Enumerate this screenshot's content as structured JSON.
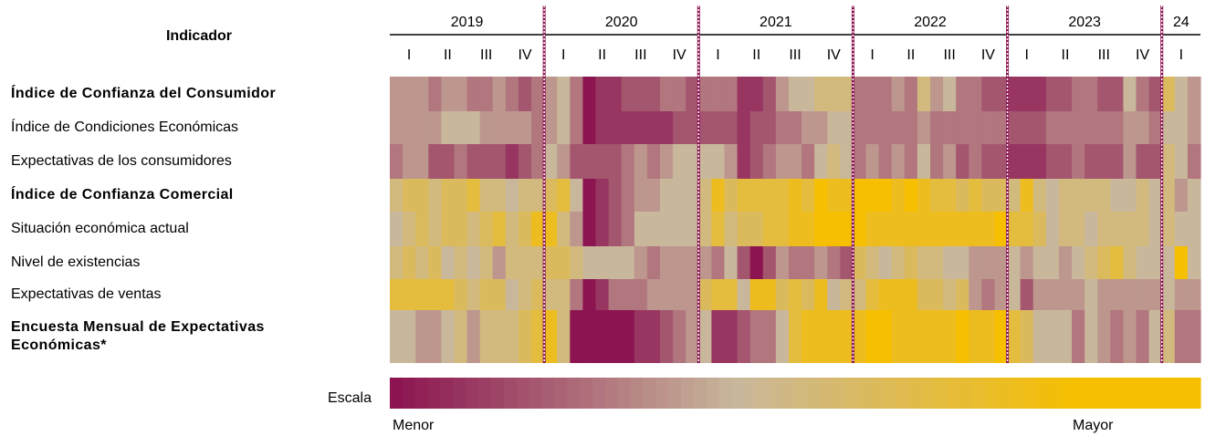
{
  "chart_data": {
    "type": "heatmap",
    "row_header": "Indicador",
    "years": [
      "2019",
      "2020",
      "2021",
      "2022",
      "2023",
      "24"
    ],
    "quarters": [
      "I",
      "II",
      "III",
      "IV",
      "I",
      "II",
      "III",
      "IV",
      "I",
      "II",
      "III",
      "IV",
      "I",
      "II",
      "III",
      "IV",
      "I",
      "II",
      "III",
      "IV",
      "I"
    ],
    "colorscale": [
      "#8c1551",
      "#c9b79c",
      "#f6bf00"
    ],
    "zlim": [
      0,
      10
    ],
    "scale_label": "Escala",
    "scale_min_label": "Menor",
    "scale_max_label": "Mayor",
    "series": [
      {
        "name": "Índice de Confianza del Consumidor",
        "bold": true,
        "values": [
          4,
          4,
          4,
          3,
          4,
          4,
          3,
          3,
          4,
          3,
          2,
          3,
          4,
          5,
          3,
          0,
          1,
          1,
          2,
          2,
          2,
          3,
          3,
          2,
          3,
          3,
          3,
          1,
          1,
          2,
          4,
          5,
          5,
          6,
          6,
          6,
          3,
          3,
          3,
          4,
          3,
          6,
          4,
          5,
          3,
          3,
          2,
          2,
          1,
          1,
          1,
          2,
          2,
          3,
          3,
          2,
          2,
          5,
          3,
          2,
          7,
          5,
          4
        ]
      },
      {
        "name": "Índice de Condiciones Económicas",
        "bold": false,
        "values": [
          4,
          4,
          4,
          4,
          5,
          5,
          5,
          4,
          4,
          4,
          4,
          3,
          4,
          5,
          3,
          0,
          1,
          1,
          1,
          1,
          1,
          1,
          2,
          2,
          2,
          2,
          2,
          1,
          2,
          2,
          3,
          3,
          4,
          4,
          5,
          5,
          3,
          3,
          3,
          3,
          3,
          4,
          3,
          3,
          3,
          3,
          3,
          3,
          2,
          2,
          2,
          3,
          3,
          3,
          3,
          3,
          3,
          4,
          4,
          3,
          5,
          5,
          4
        ]
      },
      {
        "name": "Expectativas de los consumidores",
        "bold": false,
        "values": [
          3,
          4,
          4,
          2,
          2,
          3,
          2,
          2,
          2,
          1,
          2,
          3,
          5,
          4,
          2,
          2,
          2,
          2,
          3,
          4,
          3,
          4,
          5,
          5,
          5,
          5,
          4,
          1,
          2,
          3,
          4,
          4,
          3,
          5,
          6,
          5,
          3,
          4,
          3,
          4,
          3,
          5,
          3,
          4,
          2,
          3,
          2,
          2,
          1,
          1,
          1,
          2,
          2,
          3,
          2,
          2,
          2,
          4,
          2,
          2,
          6,
          5,
          3
        ]
      },
      {
        "name": "Índice de Confianza Comercial",
        "bold": true,
        "values": [
          6,
          7,
          7,
          6,
          7,
          7,
          8,
          6,
          6,
          5,
          6,
          6,
          7,
          8,
          5,
          0,
          1,
          2,
          3,
          4,
          4,
          5,
          5,
          5,
          6,
          9,
          7,
          8,
          8,
          8,
          8,
          9,
          8,
          10,
          9,
          9,
          10,
          10,
          10,
          9,
          10,
          9,
          8,
          8,
          7,
          8,
          7,
          7,
          6,
          9,
          6,
          5,
          6,
          6,
          6,
          6,
          5,
          5,
          6,
          5,
          6,
          4,
          5
        ]
      },
      {
        "name": "Situación económica actual",
        "bold": false,
        "values": [
          5,
          6,
          7,
          6,
          7,
          7,
          6,
          7,
          8,
          6,
          7,
          9,
          9,
          6,
          4,
          0,
          1,
          2,
          3,
          5,
          5,
          5,
          5,
          5,
          6,
          8,
          6,
          7,
          7,
          8,
          8,
          9,
          9,
          10,
          10,
          10,
          10,
          9,
          9,
          9,
          9,
          9,
          9,
          9,
          9,
          9,
          9,
          10,
          8,
          8,
          7,
          5,
          6,
          6,
          5,
          6,
          6,
          6,
          6,
          5,
          6,
          5,
          5
        ]
      },
      {
        "name": "Nivel de existencias",
        "bold": false,
        "values": [
          6,
          7,
          6,
          7,
          5,
          6,
          5,
          6,
          4,
          6,
          6,
          6,
          7,
          7,
          6,
          5,
          5,
          5,
          5,
          4,
          3,
          4,
          4,
          4,
          4,
          3,
          5,
          2,
          0,
          2,
          4,
          3,
          3,
          4,
          3,
          2,
          7,
          6,
          5,
          6,
          7,
          6,
          6,
          5,
          5,
          4,
          4,
          4,
          5,
          4,
          5,
          5,
          4,
          5,
          6,
          7,
          8,
          6,
          5,
          5,
          5,
          10,
          5
        ]
      },
      {
        "name": "Expectativas de ventas",
        "bold": false,
        "values": [
          8,
          8,
          8,
          8,
          8,
          7,
          6,
          7,
          7,
          5,
          6,
          7,
          6,
          6,
          3,
          0,
          1,
          3,
          3,
          3,
          4,
          4,
          4,
          4,
          7,
          8,
          8,
          5,
          9,
          9,
          7,
          8,
          7,
          9,
          5,
          6,
          6,
          8,
          9,
          9,
          9,
          7,
          7,
          6,
          7,
          4,
          3,
          4,
          5,
          2,
          4,
          4,
          4,
          4,
          5,
          4,
          4,
          4,
          4,
          4,
          5,
          4,
          4
        ]
      },
      {
        "name": "Encuesta Mensual de Expectativas Económicas*",
        "bold": true,
        "values": [
          5,
          5,
          4,
          4,
          5,
          6,
          4,
          6,
          6,
          6,
          7,
          8,
          9,
          6,
          0,
          0,
          0,
          0,
          0,
          1,
          1,
          2,
          3,
          4,
          5,
          1,
          1,
          2,
          3,
          3,
          5,
          8,
          9,
          9,
          9,
          9,
          9,
          10,
          10,
          9,
          9,
          9,
          9,
          9,
          10,
          9,
          9,
          10,
          8,
          7,
          5,
          5,
          5,
          3,
          5,
          4,
          3,
          4,
          3,
          5,
          6,
          3,
          3
        ]
      }
    ]
  }
}
